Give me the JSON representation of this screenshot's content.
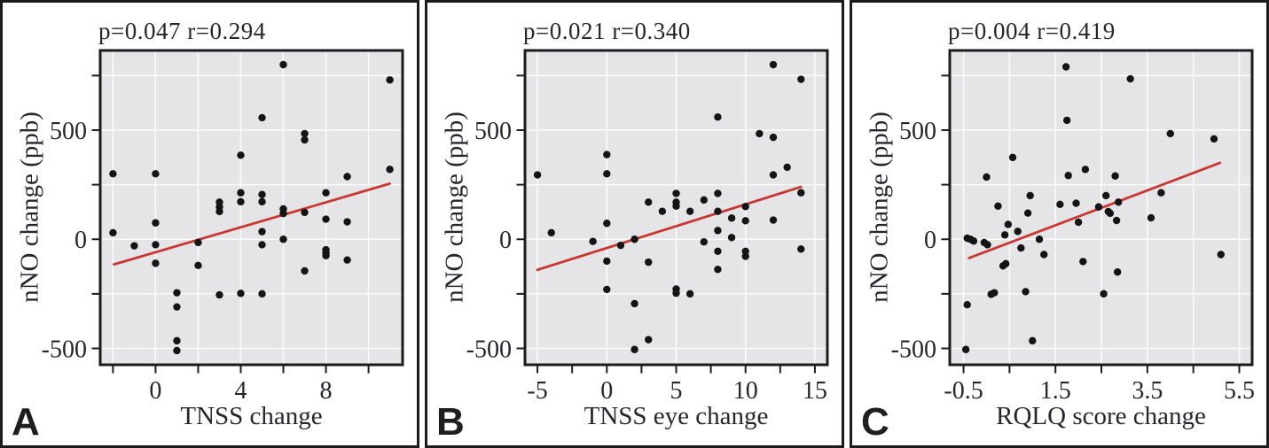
{
  "style": {
    "plot_bg": "#e5e4e6",
    "grid_color": "#fbfbfb",
    "frame_color": "#1c1c1c",
    "point_color": "#141414",
    "trend_color": "#c93732",
    "text_color": "#26262e"
  },
  "chart_data": [
    {
      "type": "scatter",
      "panel_letter": "A",
      "title": "p=0.047 r=0.294",
      "stats": {
        "p": "0.047",
        "r": "0.294"
      },
      "xlabel": "TNSS change",
      "ylabel": "nNO change (ppb)",
      "xlim": [
        -2.6,
        11.6
      ],
      "ylim": [
        -575,
        865
      ],
      "grid": true,
      "legend": false,
      "x_ticks": [
        -2,
        0,
        2,
        4,
        6,
        8,
        10
      ],
      "x_tick_labels": [
        [
          0,
          "0"
        ],
        [
          4,
          "4"
        ],
        [
          8,
          "8"
        ]
      ],
      "x_gridlines": [
        -2,
        0,
        2,
        4,
        6,
        8,
        10
      ],
      "y_ticks": [
        750,
        500,
        250,
        0,
        -250,
        -500
      ],
      "y_tick_labels": [
        [
          500,
          "500"
        ],
        [
          0,
          "0"
        ],
        [
          -500,
          "-500"
        ]
      ],
      "y_gridlines": [
        750,
        500,
        250,
        0,
        -250,
        -500
      ],
      "trend_line": {
        "x1": -1.95,
        "y1": -115,
        "x2": 11.0,
        "y2": 255
      },
      "points": [
        [
          -2,
          300
        ],
        [
          -2,
          30
        ],
        [
          -1,
          -30
        ],
        [
          0,
          300
        ],
        [
          0,
          75
        ],
        [
          0,
          -25
        ],
        [
          0,
          -110
        ],
        [
          1,
          -245
        ],
        [
          1,
          -310
        ],
        [
          1,
          -465
        ],
        [
          1,
          -510
        ],
        [
          2,
          -15
        ],
        [
          2,
          -120
        ],
        [
          3,
          170
        ],
        [
          3,
          148
        ],
        [
          3,
          127
        ],
        [
          3,
          -255
        ],
        [
          4,
          385
        ],
        [
          4,
          213
        ],
        [
          4,
          172
        ],
        [
          4,
          -248
        ],
        [
          5,
          557
        ],
        [
          5,
          205
        ],
        [
          5,
          172
        ],
        [
          5,
          35
        ],
        [
          5,
          -25
        ],
        [
          5,
          -250
        ],
        [
          6,
          800
        ],
        [
          6,
          139
        ],
        [
          6,
          118
        ],
        [
          6,
          0
        ],
        [
          7,
          484
        ],
        [
          7,
          455
        ],
        [
          7,
          123
        ],
        [
          7,
          -145
        ],
        [
          8,
          213
        ],
        [
          8,
          92
        ],
        [
          8,
          -48
        ],
        [
          8,
          -62
        ],
        [
          8,
          -75
        ],
        [
          9,
          287
        ],
        [
          9,
          80
        ],
        [
          9,
          -95
        ],
        [
          11,
          730
        ],
        [
          11,
          320
        ]
      ]
    },
    {
      "type": "scatter",
      "panel_letter": "B",
      "title": "p=0.021 r=0.340",
      "stats": {
        "p": "0.021",
        "r": "0.340"
      },
      "xlabel": "TNSS eye change",
      "ylabel": "nNO change (ppb)",
      "xlim": [
        -5.9,
        15.9
      ],
      "ylim": [
        -575,
        865
      ],
      "grid": true,
      "legend": false,
      "x_ticks": [
        -5,
        -2.5,
        0,
        2.5,
        5,
        7.5,
        10,
        12.5,
        15
      ],
      "x_tick_labels": [
        [
          -5,
          "-5"
        ],
        [
          0,
          "0"
        ],
        [
          5,
          "5"
        ],
        [
          10,
          "10"
        ],
        [
          15,
          "15"
        ]
      ],
      "x_gridlines": [
        -5,
        0,
        5,
        10,
        15
      ],
      "y_ticks": [
        750,
        500,
        250,
        0,
        -250,
        -500
      ],
      "y_tick_labels": [
        [
          500,
          "500"
        ],
        [
          0,
          "0"
        ],
        [
          -500,
          "-500"
        ]
      ],
      "y_gridlines": [
        750,
        500,
        250,
        0,
        -250,
        -500
      ],
      "trend_line": {
        "x1": -5.0,
        "y1": -140,
        "x2": 14.0,
        "y2": 240
      },
      "points": [
        [
          -5,
          295
        ],
        [
          -4,
          30
        ],
        [
          -1,
          -10
        ],
        [
          0,
          388
        ],
        [
          0,
          300
        ],
        [
          0,
          73
        ],
        [
          0,
          -100
        ],
        [
          0,
          -230
        ],
        [
          1,
          -28
        ],
        [
          2,
          0
        ],
        [
          2,
          -295
        ],
        [
          2,
          -505
        ],
        [
          3,
          170
        ],
        [
          3,
          -105
        ],
        [
          3,
          -460
        ],
        [
          4,
          128
        ],
        [
          5,
          210
        ],
        [
          5,
          170
        ],
        [
          5,
          152
        ],
        [
          5,
          -228
        ],
        [
          5,
          -247
        ],
        [
          6,
          128
        ],
        [
          6,
          -250
        ],
        [
          7,
          180
        ],
        [
          7,
          -12
        ],
        [
          8,
          560
        ],
        [
          8,
          210
        ],
        [
          8,
          128
        ],
        [
          8,
          40
        ],
        [
          8,
          -55
        ],
        [
          8,
          -138
        ],
        [
          9,
          97
        ],
        [
          9,
          8
        ],
        [
          10,
          150
        ],
        [
          10,
          85
        ],
        [
          10,
          -55
        ],
        [
          10,
          -78
        ],
        [
          11,
          484
        ],
        [
          12,
          800
        ],
        [
          12,
          467
        ],
        [
          12,
          295
        ],
        [
          12,
          88
        ],
        [
          13,
          330
        ],
        [
          14,
          733
        ],
        [
          14,
          213
        ],
        [
          14,
          -45
        ]
      ]
    },
    {
      "type": "scatter",
      "panel_letter": "C",
      "title": "p=0.004 r=0.419",
      "stats": {
        "p": "0.004",
        "r": "0.419"
      },
      "xlabel": "RQLQ score change",
      "ylabel": "nNO change (ppb)",
      "xlim": [
        -0.8,
        5.78
      ],
      "ylim": [
        -575,
        865
      ],
      "grid": true,
      "legend": false,
      "x_ticks": [
        -0.5,
        0.5,
        1.5,
        2.5,
        3.5,
        4.5,
        5.5
      ],
      "x_tick_labels": [
        [
          -0.5,
          "-0.5"
        ],
        [
          1.5,
          "1.5"
        ],
        [
          3.5,
          "3.5"
        ],
        [
          5.5,
          "5.5"
        ]
      ],
      "x_gridlines": [
        -0.5,
        0.5,
        1.5,
        2.5,
        3.5,
        4.5,
        5.5
      ],
      "y_ticks": [
        750,
        500,
        250,
        0,
        -250,
        -500
      ],
      "y_tick_labels": [
        [
          500,
          "500"
        ],
        [
          0,
          "0"
        ],
        [
          -500,
          "-500"
        ]
      ],
      "y_gridlines": [
        750,
        500,
        250,
        0,
        -250,
        -500
      ],
      "trend_line": {
        "x1": -0.38,
        "y1": -86,
        "x2": 5.08,
        "y2": 350
      },
      "points": [
        [
          -0.42,
          5
        ],
        [
          -0.35,
          0
        ],
        [
          -0.28,
          -8
        ],
        [
          -0.42,
          -300
        ],
        [
          -0.45,
          -505
        ],
        [
          0.0,
          285
        ],
        [
          -0.05,
          -15
        ],
        [
          0.02,
          -25
        ],
        [
          0.25,
          152
        ],
        [
          0.17,
          -245
        ],
        [
          0.1,
          -252
        ],
        [
          0.4,
          20
        ],
        [
          0.47,
          68
        ],
        [
          0.42,
          -112
        ],
        [
          0.36,
          -122
        ],
        [
          0.57,
          375
        ],
        [
          0.68,
          36
        ],
        [
          0.75,
          -40
        ],
        [
          0.95,
          200
        ],
        [
          0.9,
          120
        ],
        [
          0.85,
          -240
        ],
        [
          1.0,
          -465
        ],
        [
          1.15,
          0
        ],
        [
          1.25,
          -70
        ],
        [
          1.6,
          160
        ],
        [
          1.73,
          790
        ],
        [
          1.75,
          545
        ],
        [
          1.78,
          292
        ],
        [
          1.95,
          165
        ],
        [
          2.0,
          78
        ],
        [
          2.15,
          320
        ],
        [
          2.1,
          -102
        ],
        [
          2.44,
          148
        ],
        [
          2.6,
          200
        ],
        [
          2.65,
          127
        ],
        [
          2.69,
          119
        ],
        [
          2.55,
          -250
        ],
        [
          2.8,
          290
        ],
        [
          2.83,
          86
        ],
        [
          2.85,
          -150
        ],
        [
          2.87,
          170
        ],
        [
          3.13,
          735
        ],
        [
          3.58,
          98
        ],
        [
          3.8,
          213
        ],
        [
          4.0,
          484
        ],
        [
          4.95,
          460
        ],
        [
          5.1,
          -70
        ]
      ]
    }
  ]
}
